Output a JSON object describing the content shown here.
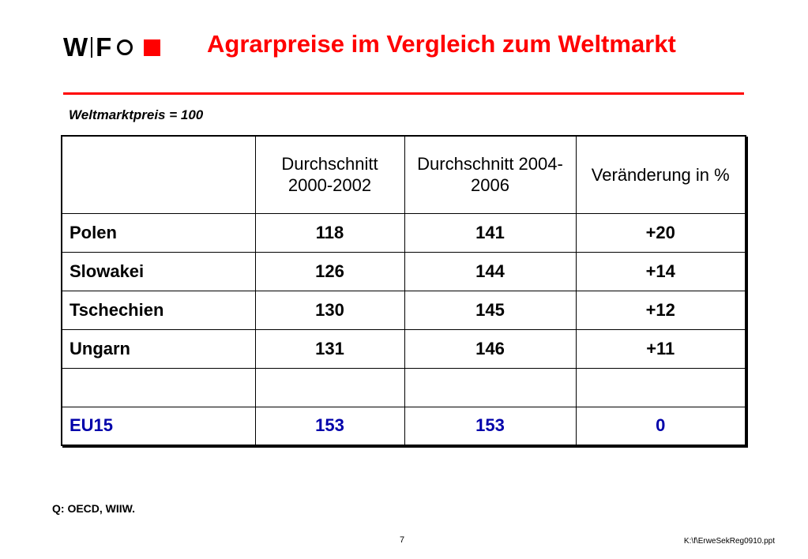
{
  "logo": {
    "part1": "W",
    "part2": "F"
  },
  "title": "Agrarpreise im Vergleich zum Weltmarkt",
  "subtitle": "Weltmarktpreis = 100",
  "table": {
    "headers": [
      "",
      "Durchschnitt 2000-2002",
      "Durchschnitt 2004-2006",
      "Veränderung in %"
    ],
    "rows": [
      [
        "Polen",
        "118",
        "141",
        "+20"
      ],
      [
        "Slowakei",
        "126",
        "144",
        "+14"
      ],
      [
        "Tschechien",
        "130",
        "145",
        "+12"
      ],
      [
        "Ungarn",
        "131",
        "146",
        "+11"
      ],
      [
        "",
        "",
        "",
        ""
      ],
      [
        "EU15",
        "153",
        "153",
        "0"
      ]
    ]
  },
  "source": "Q: OECD, WIIW.",
  "page_number": "7",
  "filename": "K:\\f\\ErweSekReg0910.ppt",
  "colors": {
    "accent": "#ff0000",
    "highlight_row": "#0000aa"
  }
}
